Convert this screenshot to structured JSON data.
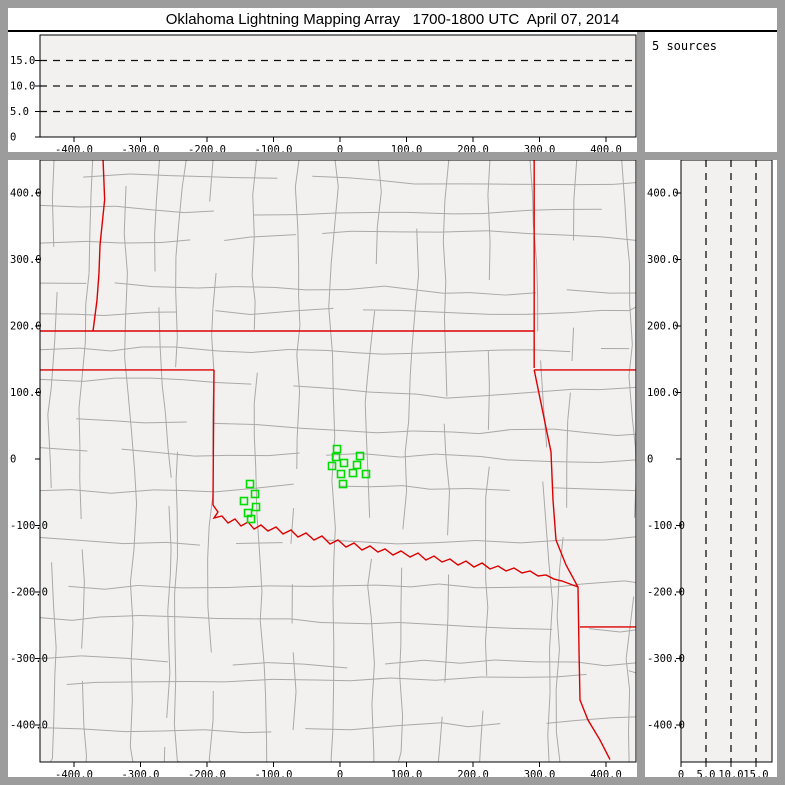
{
  "title": "Oklahoma Lightning Mapping Array   1700-1800 UTC  April 07, 2014",
  "sources_label": "5 sources",
  "colors": {
    "frame": "#9c9c9c",
    "plot_bg": "#f2f1ef",
    "county_line": "#a9a9a9",
    "state_border": "#dd0000",
    "station_marker": "#00dd00",
    "axis": "#000000"
  },
  "chart_data": {
    "type": "scatter",
    "title": "Oklahoma Lightning Mapping Array   1700-1800 UTC  April 07, 2014",
    "source_count_annotation": "5 sources",
    "km_ticks": {
      "labels": [
        "-400.0",
        "-300.0",
        "-200.0",
        "-100.0",
        "0",
        "100.0",
        "200.0",
        "300.0",
        "400.0"
      ],
      "values": [
        -400,
        -300,
        -200,
        -100,
        0,
        100,
        200,
        300,
        400
      ]
    },
    "alt_ticks": {
      "labels": [
        "0",
        "5.0",
        "10.0",
        "15.0"
      ],
      "values": [
        0,
        5,
        10,
        15
      ]
    },
    "xlim_km": [
      -450,
      445
    ],
    "ylim_km": [
      -450,
      449
    ],
    "alt_lim_km": [
      0,
      20
    ],
    "altitude_gridlines_km": [
      5,
      10,
      15
    ],
    "panels": [
      {
        "id": "altitude-vs-east-west",
        "type": "line",
        "points": []
      },
      {
        "id": "plan-view-map",
        "type": "scatter"
      },
      {
        "id": "altitude-vs-north-south",
        "type": "line",
        "points": []
      }
    ],
    "stations_km": [
      [
        -4.5,
        15.0
      ],
      [
        -6.0,
        3.0
      ],
      [
        -12.0,
        -10.5
      ],
      [
        6.0,
        -6.0
      ],
      [
        30.1,
        4.5
      ],
      [
        25.6,
        -9.0
      ],
      [
        1.5,
        -22.6
      ],
      [
        19.5,
        -21.1
      ],
      [
        39.1,
        -22.6
      ],
      [
        4.5,
        -37.6
      ],
      [
        -135.3,
        -37.6
      ],
      [
        -127.8,
        -52.6
      ],
      [
        -144.4,
        -63.2
      ],
      [
        -126.3,
        -72.2
      ],
      [
        -138.3,
        -81.2
      ],
      [
        -133.8,
        -90.2
      ]
    ],
    "state_borders_km": [
      [
        [
          -356.4,
          452.6
        ],
        [
          -353.9,
          390.0
        ],
        [
          -360.9,
          321.8
        ],
        [
          -362.4,
          280.0
        ],
        [
          -365.4,
          239.1
        ],
        [
          -371.4,
          192.5
        ]
      ],
      [
        [
          -451.1,
          192.5
        ],
        [
          292.0,
          192.5
        ]
      ],
      [
        [
          292.0,
          452.6
        ],
        [
          292.0,
          136.8
        ]
      ],
      [
        [
          292.0,
          134.0
        ],
        [
          445.0,
          134.0
        ]
      ],
      [
        [
          292.0,
          134.0
        ],
        [
          317.3,
          10.5
        ],
        [
          320.3,
          -61.7
        ],
        [
          324.8,
          -121.8
        ],
        [
          339.9,
          -159.4
        ],
        [
          357.9,
          -192.5
        ],
        [
          359.4,
          -287.2
        ],
        [
          360.9,
          -362.4
        ],
        [
          372.9,
          -392.5
        ],
        [
          391.0,
          -422.6
        ],
        [
          406.0,
          -452.0
        ]
      ],
      [
        [
          360.9,
          -252.6
        ],
        [
          445.0,
          -252.6
        ]
      ],
      [
        [
          -451.1,
          134.0
        ],
        [
          -189.5,
          134.0
        ]
      ],
      [
        [
          -189.5,
          134.0
        ],
        [
          -191.0,
          -69.2
        ]
      ],
      [
        [
          -191.0,
          -69.2
        ],
        [
          -183.5,
          -79.7
        ],
        [
          -189.5,
          -88.7
        ],
        [
          -177.5,
          -85.7
        ],
        [
          -168.4,
          -96.3
        ],
        [
          -157.9,
          -90.2
        ],
        [
          -148.9,
          -100.8
        ],
        [
          -138.3,
          -94.7
        ],
        [
          -129.3,
          -105.3
        ],
        [
          -118.8,
          -99.3
        ],
        [
          -108.3,
          -108.3
        ],
        [
          -96.2,
          -102.3
        ],
        [
          -85.7,
          -112.8
        ],
        [
          -73.7,
          -106.8
        ],
        [
          -63.2,
          -117.3
        ],
        [
          -51.1,
          -111.3
        ],
        [
          -39.1,
          -121.8
        ],
        [
          -27.1,
          -115.8
        ],
        [
          -15.0,
          -127.8
        ],
        [
          -3.0,
          -121.8
        ],
        [
          9.0,
          -132.3
        ],
        [
          21.1,
          -126.3
        ],
        [
          33.1,
          -136.9
        ],
        [
          45.1,
          -130.8
        ],
        [
          57.1,
          -139.9
        ],
        [
          67.7,
          -135.3
        ],
        [
          79.7,
          -144.4
        ],
        [
          91.7,
          -138.3
        ],
        [
          105.3,
          -147.4
        ],
        [
          117.3,
          -141.4
        ],
        [
          129.3,
          -151.9
        ],
        [
          141.4,
          -145.9
        ],
        [
          153.4,
          -154.9
        ],
        [
          165.4,
          -150.4
        ],
        [
          177.5,
          -159.4
        ],
        [
          189.5,
          -153.4
        ],
        [
          201.5,
          -162.4
        ],
        [
          213.6,
          -156.4
        ],
        [
          225.6,
          -165.4
        ],
        [
          237.6,
          -160.9
        ],
        [
          249.7,
          -168.4
        ],
        [
          261.7,
          -163.9
        ],
        [
          273.7,
          -171.4
        ],
        [
          285.8,
          -168.4
        ],
        [
          297.8,
          -175.9
        ],
        [
          309.8,
          -174.4
        ],
        [
          321.8,
          -180.5
        ],
        [
          333.9,
          -183.5
        ],
        [
          345.9,
          -188.0
        ],
        [
          357.9,
          -192.5
        ]
      ]
    ]
  }
}
